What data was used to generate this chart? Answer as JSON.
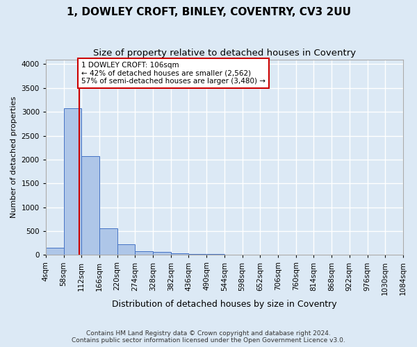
{
  "title1": "1, DOWLEY CROFT, BINLEY, COVENTRY, CV3 2UU",
  "title2": "Size of property relative to detached houses in Coventry",
  "xlabel": "Distribution of detached houses by size in Coventry",
  "ylabel": "Number of detached properties",
  "footer1": "Contains HM Land Registry data © Crown copyright and database right 2024.",
  "footer2": "Contains public sector information licensed under the Open Government Licence v3.0.",
  "bin_edges": [
    4,
    58,
    112,
    166,
    220,
    274,
    328,
    382,
    436,
    490,
    544,
    598,
    652,
    706,
    760,
    814,
    868,
    922,
    976,
    1030,
    1084
  ],
  "bar_heights": [
    150,
    3070,
    2070,
    560,
    230,
    80,
    60,
    40,
    20,
    15,
    10,
    8,
    5,
    4,
    3,
    3,
    2,
    2,
    1,
    1
  ],
  "bar_color": "#aec6e8",
  "bar_edge_color": "#4472c4",
  "property_size": 106,
  "red_line_color": "#cc0000",
  "annotation_line1": "1 DOWLEY CROFT: 106sqm",
  "annotation_line2": "← 42% of detached houses are smaller (2,562)",
  "annotation_line3": "57% of semi-detached houses are larger (3,480) →",
  "annotation_box_color": "#ffffff",
  "annotation_box_edge": "#cc0000",
  "ylim": [
    0,
    4100
  ],
  "yticks": [
    0,
    500,
    1000,
    1500,
    2000,
    2500,
    3000,
    3500,
    4000
  ],
  "background_color": "#dce9f5",
  "grid_color": "#ffffff",
  "title1_fontsize": 11,
  "title2_fontsize": 9.5,
  "ylabel_fontsize": 8,
  "xlabel_fontsize": 9,
  "tick_fontsize": 7.5,
  "footer_fontsize": 6.5
}
